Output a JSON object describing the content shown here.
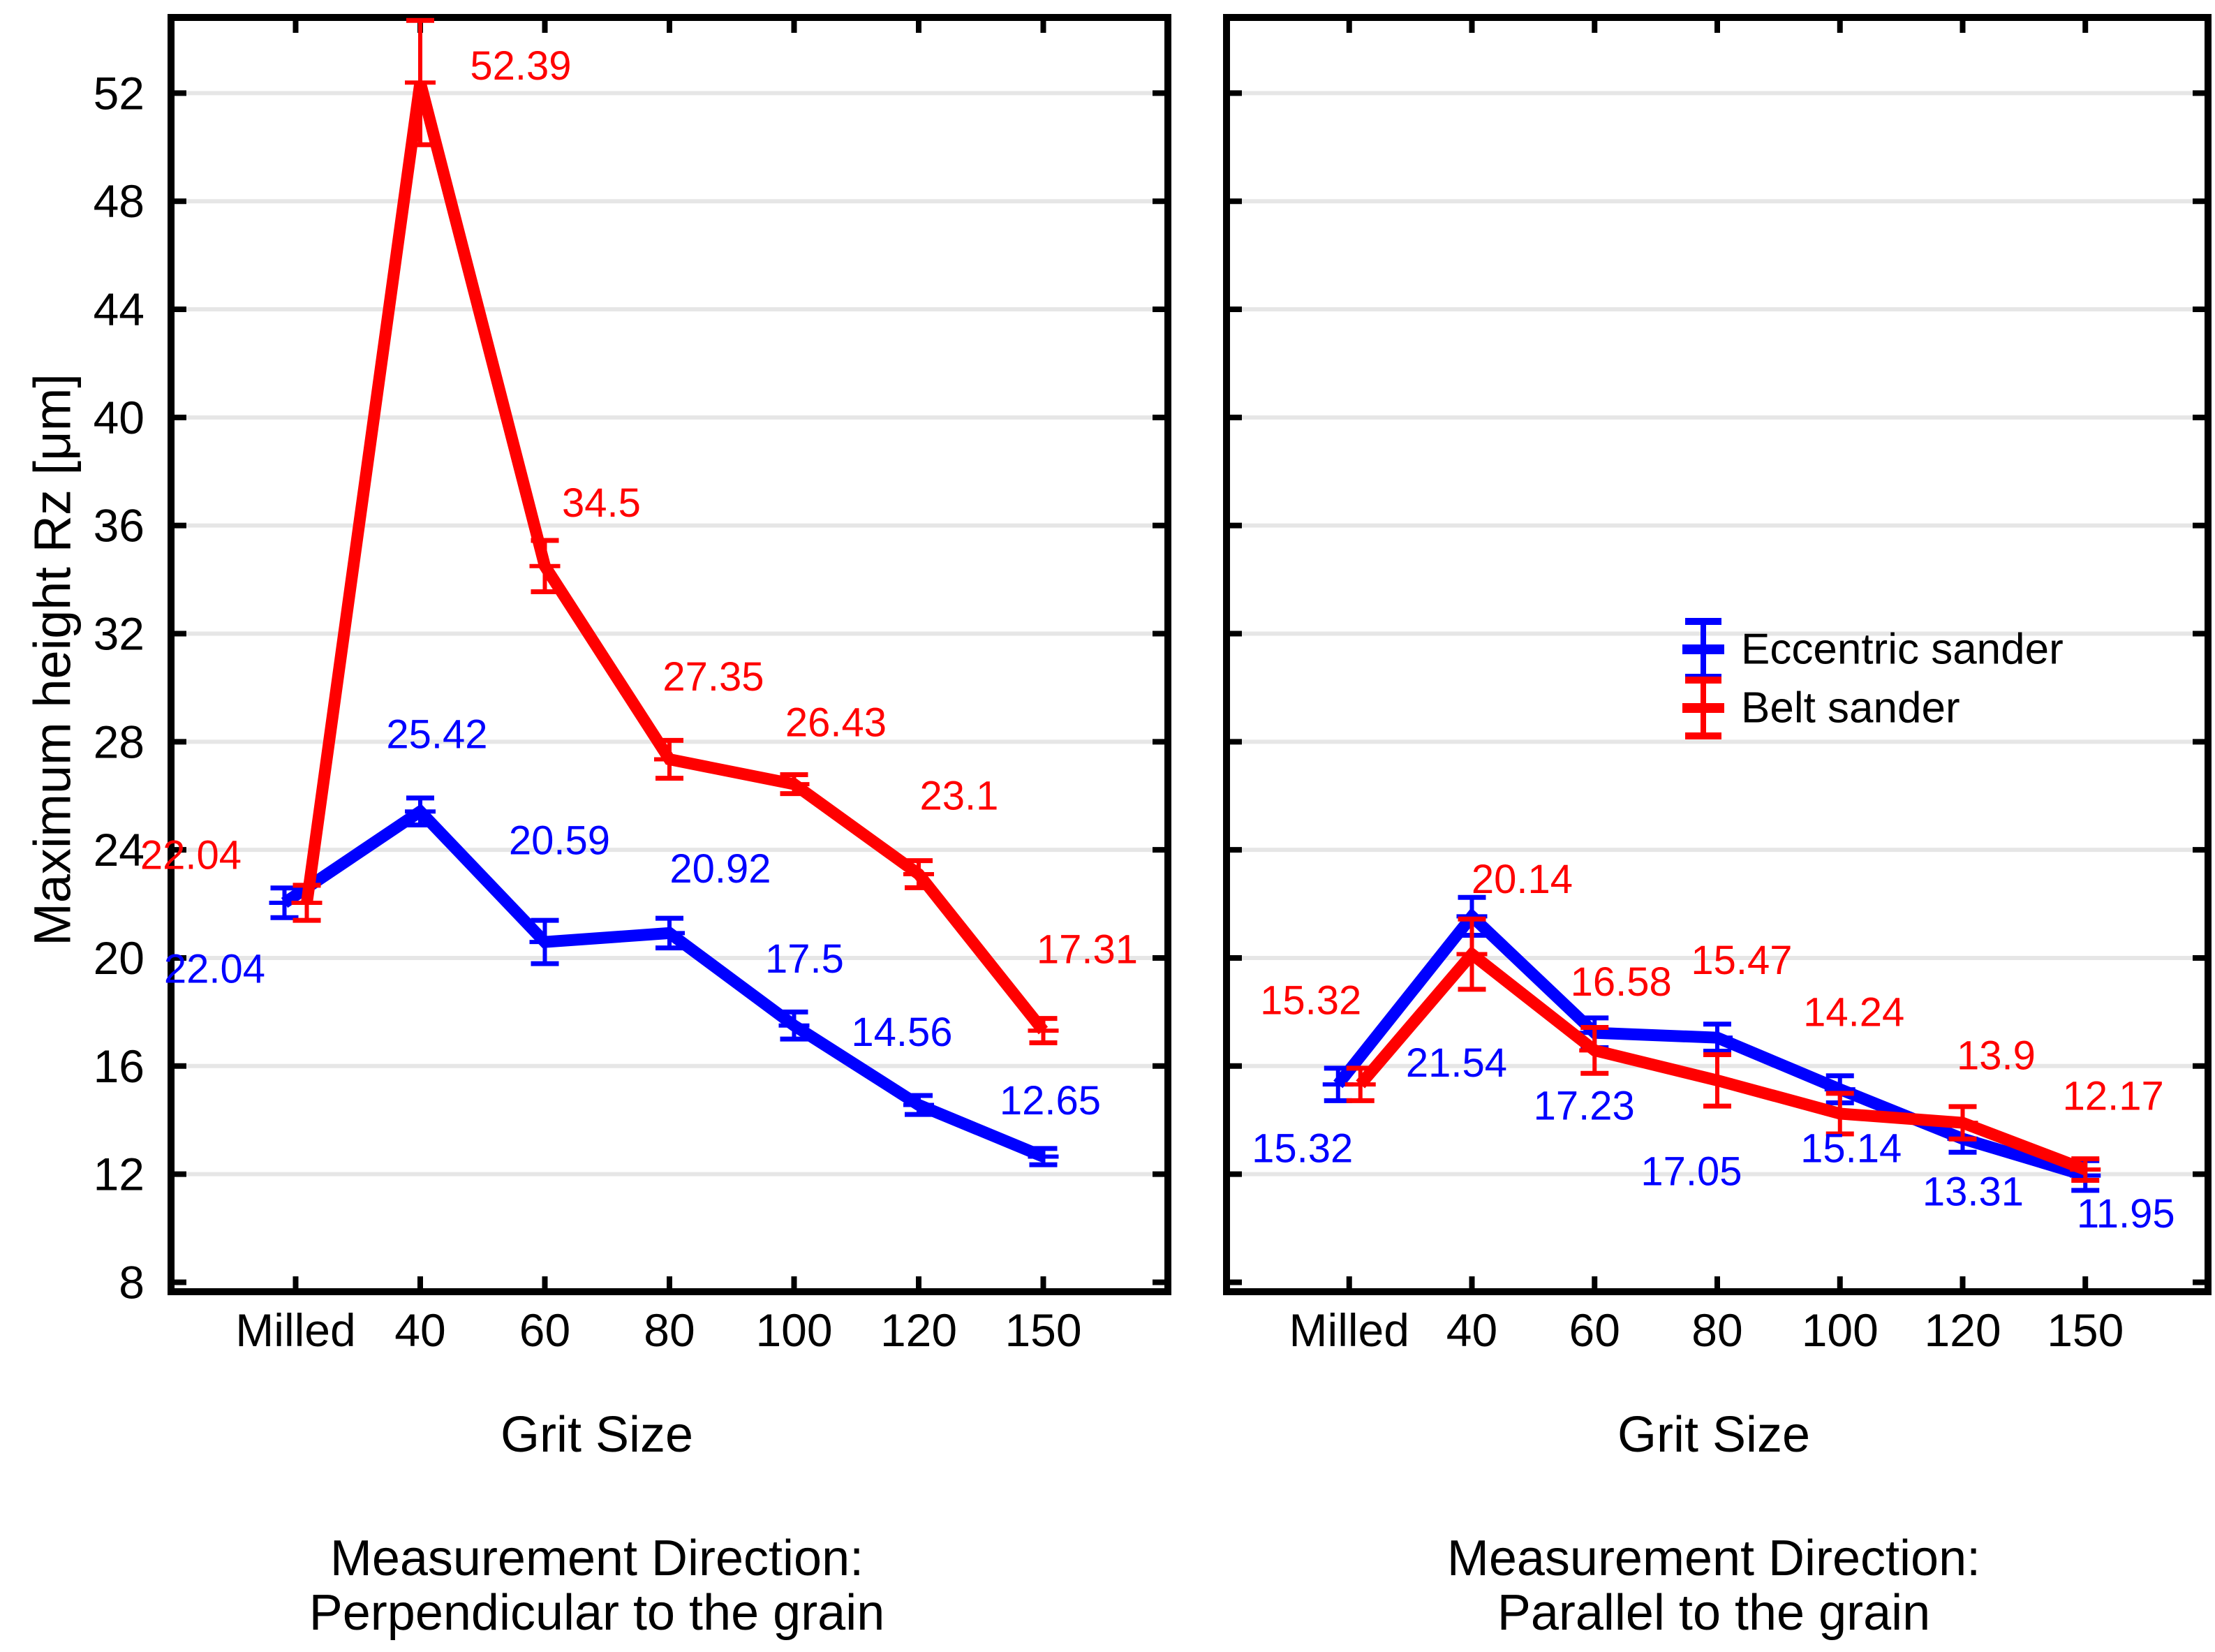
{
  "figure_type": "dual-panel line chart with error bars",
  "ylabel": "Maximum height Rz [μm]",
  "xlabel": "Grit Size",
  "colors": {
    "eccentric_sander": "#0000ff",
    "belt_sander": "#ff0000",
    "axis": "#000000",
    "grid": "#e6e6e6",
    "background": "#ffffff"
  },
  "legend": {
    "items": [
      {
        "label": "Eccentric sander",
        "color": "#0000ff"
      },
      {
        "label": "Belt sander",
        "color": "#ff0000"
      }
    ]
  },
  "chart_data": [
    {
      "type": "line",
      "caption": [
        "Measurement Direction:",
        "Perpendicular to the grain"
      ],
      "categories": [
        "Milled",
        "40",
        "60",
        "80",
        "100",
        "120",
        "150"
      ],
      "xlabel": "Grit Size",
      "ylabel": "Maximum height Rz [μm]",
      "ylim": [
        7.65,
        54.8
      ],
      "yticks": [
        8,
        12,
        16,
        20,
        24,
        28,
        32,
        36,
        40,
        44,
        48,
        52
      ],
      "show_y_tick_labels": true,
      "grid": "horizontal",
      "series": [
        {
          "name": "Eccentric sander",
          "color": "#0000ff",
          "values": [
            22.04,
            25.42,
            20.59,
            20.92,
            17.5,
            14.56,
            12.65
          ],
          "errors": [
            0.55,
            0.5,
            0.8,
            0.55,
            0.5,
            0.35,
            0.3
          ],
          "labels": [
            "22.04",
            "25.42",
            "20.59",
            "20.92",
            "17.5",
            "14.56",
            "12.65"
          ]
        },
        {
          "name": "Belt sander",
          "color": "#ff0000",
          "values": [
            22.04,
            52.39,
            34.5,
            27.35,
            26.43,
            23.1,
            17.31
          ],
          "errors": [
            0.65,
            2.3,
            0.95,
            0.7,
            0.35,
            0.5,
            0.45
          ],
          "labels": [
            "22.04",
            "52.39",
            "34.5",
            "27.35",
            "26.43",
            "23.1",
            "17.31"
          ]
        }
      ]
    },
    {
      "type": "line",
      "caption": [
        "Measurement Direction:",
        "Parallel to the grain"
      ],
      "categories": [
        "Milled",
        "40",
        "60",
        "80",
        "100",
        "120",
        "150"
      ],
      "xlabel": "Grit Size",
      "ylabel": "",
      "ylim": [
        7.65,
        54.8
      ],
      "yticks": [
        8,
        12,
        16,
        20,
        24,
        28,
        32,
        36,
        40,
        44,
        48,
        52
      ],
      "show_y_tick_labels": false,
      "grid": "horizontal",
      "has_legend": true,
      "series": [
        {
          "name": "Eccentric sander",
          "color": "#0000ff",
          "values": [
            15.32,
            21.54,
            17.23,
            17.05,
            15.14,
            13.31,
            11.95
          ],
          "errors": [
            0.6,
            0.7,
            0.55,
            0.5,
            0.5,
            0.5,
            0.55
          ],
          "labels": [
            "15.32",
            "21.54",
            "17.23",
            "17.05",
            "15.14",
            "13.31",
            "11.95"
          ]
        },
        {
          "name": "Belt sander",
          "color": "#ff0000",
          "values": [
            15.32,
            20.14,
            16.58,
            15.47,
            14.24,
            13.9,
            12.17
          ],
          "errors": [
            0.6,
            1.3,
            0.85,
            0.95,
            0.75,
            0.6,
            0.4
          ],
          "labels": [
            "15.32",
            "20.14",
            "16.58",
            "15.47",
            "14.24",
            "13.9",
            "12.17"
          ]
        }
      ]
    }
  ]
}
